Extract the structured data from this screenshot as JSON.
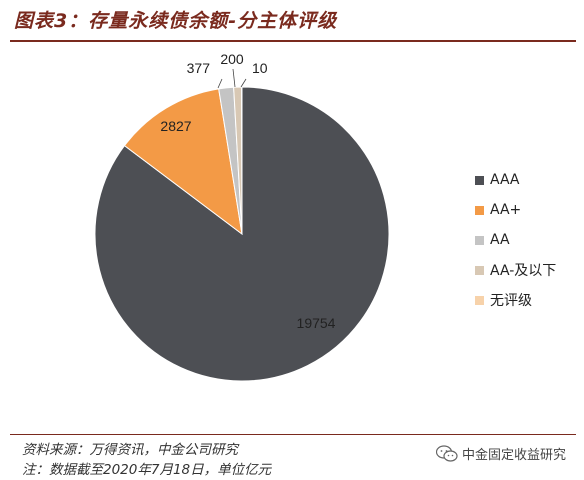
{
  "title": "图表3：存量永续债余额-分主体评级",
  "chart_data": {
    "type": "pie",
    "title": "存量永续债余额-分主体评级",
    "series": [
      {
        "name": "AAA",
        "value": 19754,
        "color": "#4d4f54"
      },
      {
        "name": "AA+",
        "value": 2827,
        "color": "#f39a46"
      },
      {
        "name": "AA",
        "value": 377,
        "color": "#c4c4c4"
      },
      {
        "name": "AA-及以下",
        "value": 200,
        "color": "#d8c8b4"
      },
      {
        "name": "无评级",
        "value": 10,
        "color": "#f7d2aa"
      }
    ],
    "legend_position": "right",
    "start": "12 o'clock",
    "direction": "clockwise"
  },
  "footer": {
    "source": "资料来源：万得资讯，中金公司研究",
    "note": "注：数据截至2020年7月18日，单位亿元"
  },
  "watermark": "中金固定收益研究"
}
